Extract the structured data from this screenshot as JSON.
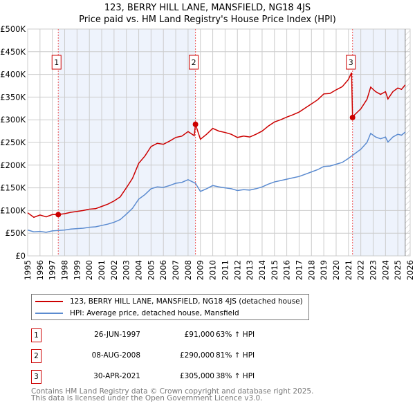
{
  "chart_data": {
    "type": "line",
    "title": "123, BERRY HILL LANE, MANSFIELD, NG18 4JS",
    "subtitle": "Price paid vs. HM Land Registry's House Price Index (HPI)",
    "xlim": [
      1995,
      2026
    ],
    "ylim": [
      0,
      500000
    ],
    "x_ticks": [
      "1995",
      "1996",
      "1997",
      "1998",
      "1999",
      "2000",
      "2001",
      "2002",
      "2003",
      "2004",
      "2005",
      "2006",
      "2007",
      "2008",
      "2009",
      "2010",
      "2011",
      "2012",
      "2013",
      "2014",
      "2015",
      "2016",
      "2017",
      "2018",
      "2019",
      "2020",
      "2021",
      "2022",
      "2023",
      "2024",
      "2025",
      "2026"
    ],
    "y_ticks": [
      {
        "v": 0,
        "label": "£0"
      },
      {
        "v": 50000,
        "label": "£50K"
      },
      {
        "v": 100000,
        "label": "£100K"
      },
      {
        "v": 150000,
        "label": "£150K"
      },
      {
        "v": 200000,
        "label": "£200K"
      },
      {
        "v": 250000,
        "label": "£250K"
      },
      {
        "v": 300000,
        "label": "£300K"
      },
      {
        "v": 350000,
        "label": "£350K"
      },
      {
        "v": 400000,
        "label": "£400K"
      },
      {
        "v": 450000,
        "label": "£450K"
      },
      {
        "v": 500000,
        "label": "£500K"
      }
    ],
    "grid": true,
    "series": [
      {
        "name": "123, BERRY HILL LANE, MANSFIELD, NG18 4JS (detached house)",
        "color": "#cc0000",
        "points": [
          [
            1995,
            95
          ],
          [
            1995.5,
            85
          ],
          [
            1996,
            90
          ],
          [
            1996.5,
            86
          ],
          [
            1997,
            91
          ],
          [
            1997.48,
            91
          ],
          [
            1998,
            93
          ],
          [
            1998.5,
            96
          ],
          [
            1999,
            98
          ],
          [
            1999.5,
            100
          ],
          [
            2000,
            103
          ],
          [
            2000.5,
            104
          ],
          [
            2001,
            109
          ],
          [
            2001.5,
            114
          ],
          [
            2002,
            121
          ],
          [
            2002.5,
            130
          ],
          [
            2003,
            150
          ],
          [
            2003.5,
            171
          ],
          [
            2004,
            204
          ],
          [
            2004.5,
            220
          ],
          [
            2005,
            241
          ],
          [
            2005.5,
            248
          ],
          [
            2006,
            246
          ],
          [
            2006.5,
            253
          ],
          [
            2007,
            261
          ],
          [
            2007.5,
            264
          ],
          [
            2008,
            274
          ],
          [
            2008.5,
            265
          ],
          [
            2008.6,
            290
          ],
          [
            2009,
            257
          ],
          [
            2009.5,
            268
          ],
          [
            2010,
            281
          ],
          [
            2010.5,
            275
          ],
          [
            2011,
            272
          ],
          [
            2011.5,
            268
          ],
          [
            2012,
            261
          ],
          [
            2012.5,
            264
          ],
          [
            2013,
            262
          ],
          [
            2013.5,
            268
          ],
          [
            2014,
            275
          ],
          [
            2014.5,
            286
          ],
          [
            2015,
            295
          ],
          [
            2015.5,
            300
          ],
          [
            2016,
            306
          ],
          [
            2016.5,
            311
          ],
          [
            2017,
            317
          ],
          [
            2017.5,
            326
          ],
          [
            2018,
            335
          ],
          [
            2018.5,
            344
          ],
          [
            2019,
            357
          ],
          [
            2019.5,
            358
          ],
          [
            2020,
            366
          ],
          [
            2020.5,
            373
          ],
          [
            2021,
            389
          ],
          [
            2021.25,
            404
          ],
          [
            2021.33,
            305
          ],
          [
            2021.5,
            311
          ],
          [
            2022,
            324
          ],
          [
            2022.5,
            345
          ],
          [
            2022.8,
            372
          ],
          [
            2023.2,
            362
          ],
          [
            2023.6,
            356
          ],
          [
            2024,
            362
          ],
          [
            2024.2,
            346
          ],
          [
            2024.6,
            362
          ],
          [
            2025,
            370
          ],
          [
            2025.3,
            367
          ],
          [
            2025.6,
            377
          ]
        ]
      },
      {
        "name": "HPI: Average price, detached house, Mansfield",
        "color": "#5b8bd0",
        "points": [
          [
            1995,
            57
          ],
          [
            1995.5,
            53
          ],
          [
            1996,
            54
          ],
          [
            1996.5,
            52
          ],
          [
            1997,
            55
          ],
          [
            1997.5,
            56
          ],
          [
            1998,
            57
          ],
          [
            1998.5,
            59
          ],
          [
            1999,
            60
          ],
          [
            1999.5,
            61
          ],
          [
            2000,
            63
          ],
          [
            2000.5,
            64
          ],
          [
            2001,
            67
          ],
          [
            2001.5,
            70
          ],
          [
            2002,
            74
          ],
          [
            2002.5,
            80
          ],
          [
            2003,
            92
          ],
          [
            2003.5,
            105
          ],
          [
            2004,
            125
          ],
          [
            2004.5,
            135
          ],
          [
            2005,
            148
          ],
          [
            2005.5,
            152
          ],
          [
            2006,
            151
          ],
          [
            2006.5,
            155
          ],
          [
            2007,
            160
          ],
          [
            2007.5,
            162
          ],
          [
            2008,
            168
          ],
          [
            2008.6,
            160
          ],
          [
            2009,
            142
          ],
          [
            2009.5,
            148
          ],
          [
            2010,
            155
          ],
          [
            2010.5,
            152
          ],
          [
            2011,
            150
          ],
          [
            2011.5,
            148
          ],
          [
            2012,
            144
          ],
          [
            2012.5,
            146
          ],
          [
            2013,
            145
          ],
          [
            2013.5,
            148
          ],
          [
            2014,
            152
          ],
          [
            2014.5,
            158
          ],
          [
            2015,
            163
          ],
          [
            2015.5,
            166
          ],
          [
            2016,
            169
          ],
          [
            2016.5,
            172
          ],
          [
            2017,
            175
          ],
          [
            2017.5,
            180
          ],
          [
            2018,
            185
          ],
          [
            2018.5,
            190
          ],
          [
            2019,
            197
          ],
          [
            2019.5,
            198
          ],
          [
            2020,
            202
          ],
          [
            2020.5,
            206
          ],
          [
            2021,
            215
          ],
          [
            2021.5,
            225
          ],
          [
            2022,
            235
          ],
          [
            2022.5,
            250
          ],
          [
            2022.8,
            270
          ],
          [
            2023.2,
            262
          ],
          [
            2023.6,
            258
          ],
          [
            2024,
            262
          ],
          [
            2024.2,
            251
          ],
          [
            2024.6,
            262
          ],
          [
            2025,
            268
          ],
          [
            2025.3,
            266
          ],
          [
            2025.6,
            273
          ]
        ]
      }
    ],
    "point_units": "thousand GBP",
    "sales": [
      {
        "label": "1",
        "x": 1997.48,
        "value": 91000,
        "date": "26-JUN-1997",
        "price": "£91,000",
        "hpi": "63% ↑ HPI"
      },
      {
        "label": "2",
        "x": 2008.6,
        "value": 290000,
        "date": "08-AUG-2008",
        "price": "£290,000",
        "hpi": "81% ↑ HPI"
      },
      {
        "label": "3",
        "x": 2021.33,
        "value": 305000,
        "date": "30-APR-2021",
        "price": "£305,000",
        "hpi": "38% ↑ HPI"
      }
    ],
    "data_end": 2025.6,
    "legend_placement": "below"
  },
  "footer": [
    "Contains HM Land Registry data © Crown copyright and database right 2025.",
    "This data is licensed under the Open Government Licence v3.0."
  ]
}
